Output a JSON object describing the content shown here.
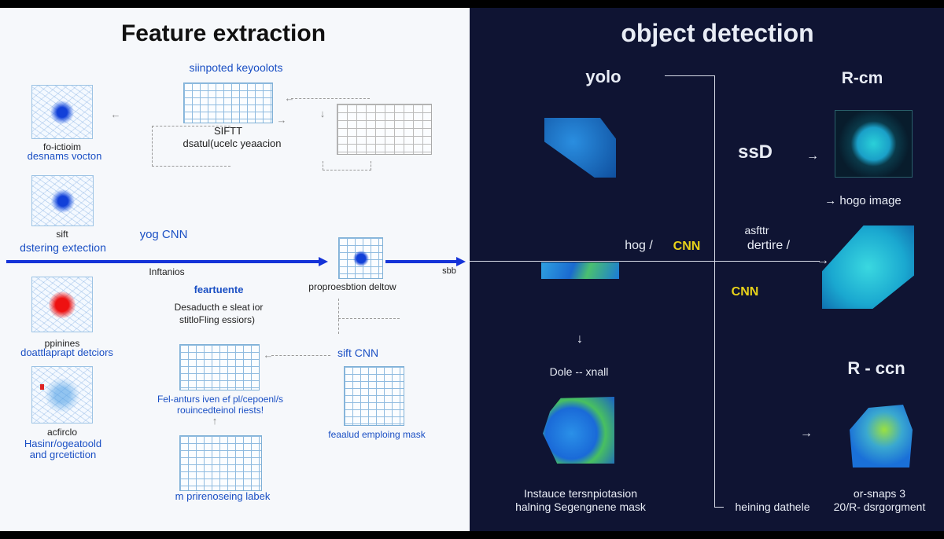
{
  "left": {
    "title": "Feature extraction",
    "keypoints_label": "siinpoted keyoolots",
    "sift_label": "SIFTT",
    "sift_sub": "dsatul(ucelc yeaacion",
    "img1_caption": "fo-ictioim",
    "img1_title": "desnams vocton",
    "img2_caption": "sift",
    "img2_title": "dstering extection",
    "yog_cnn": "yog CNN",
    "arrow_below": "Inftanios",
    "arrow_end": "sbb",
    "center_caption": "proproesbtion deltow",
    "img3_caption": "ppinines",
    "img3_title": "doattlaprapt detciors",
    "img4_caption": "acfirclo",
    "img4_title_1": "Hasinr/ogeatoold",
    "img4_title_2": "and grcetiction",
    "feature_title": "feartuente",
    "feature_sub_1": "Desaducth e sleat ior",
    "feature_sub_2": "stitloFling essiors)",
    "sift_cnn": "sift CNN",
    "mid_grid_caption_1": "Fel-anturs iven ef pl/cepoenl/s",
    "mid_grid_caption_2": "rouincedteinol riests!",
    "mask_caption": "feaalud emploing mask",
    "bottom_caption": "m prirenoseing labek"
  },
  "right": {
    "title": "object detection",
    "yolo": "yolo",
    "rcm": "R-cm",
    "ssd": "ssD",
    "hogo_image": "→ hogo image",
    "hog": "hog /",
    "cnn1": "CNN",
    "asftr": "asfttr",
    "dertire": "dertire /",
    "cnn2": "CNN",
    "down_arrow": "↓",
    "dole": "Dole -- xnall",
    "rccn": "R - ccn",
    "instance_1": "Instauce tersnpiotasion",
    "instance_2": "halning Segengnene mask",
    "heining": "heining dathele",
    "snaps_1": "or-snaps 3",
    "snaps_2": "20/R- dsrgorgment"
  },
  "colors": {
    "left_bg": "#f6f8fb",
    "right_bg": "#0f1433",
    "accent_blue": "#1a4fc4",
    "accent_yellow": "#e8d21a"
  }
}
